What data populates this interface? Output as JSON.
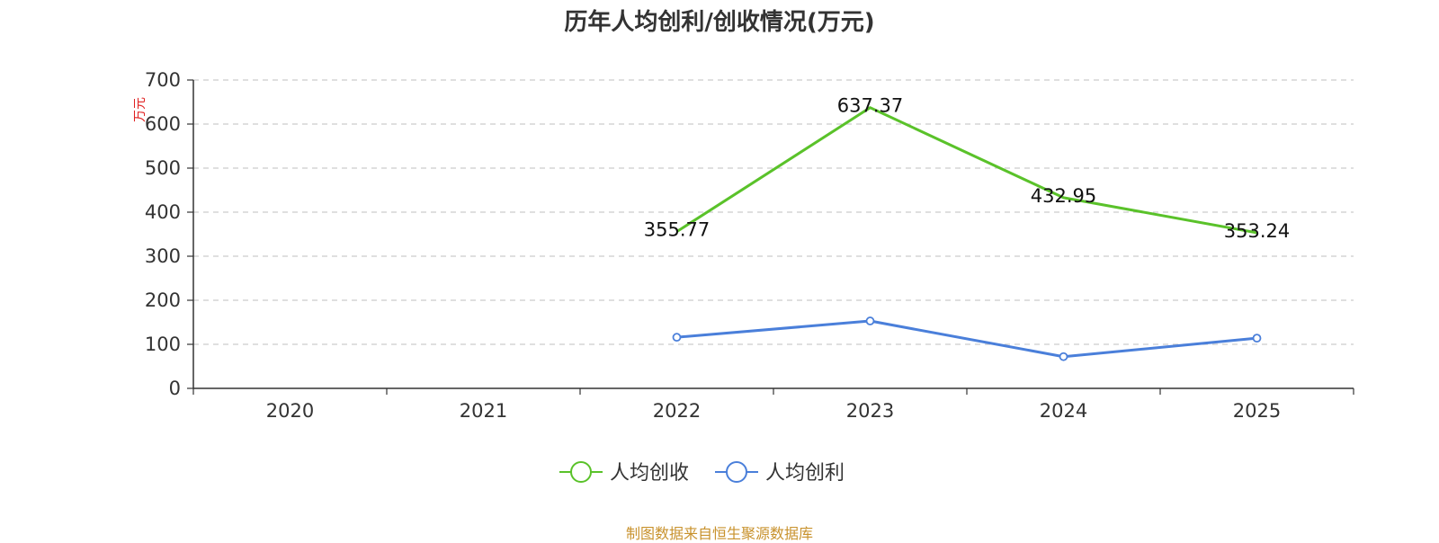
{
  "chart_data": {
    "type": "line",
    "title": "历年人均创利/创收情况(万元)",
    "ylabel": "万元",
    "categories": [
      "2020",
      "2021",
      "2022",
      "2023",
      "2024",
      "2025"
    ],
    "ylim": [
      0,
      700
    ],
    "yticks": [
      0,
      100,
      200,
      300,
      400,
      500,
      600,
      700
    ],
    "grid": true,
    "legend_position": "bottom",
    "series": [
      {
        "name": "人均创收",
        "color": "#5ac22a",
        "values": [
          null,
          null,
          355.77,
          637.37,
          432.95,
          353.24
        ],
        "show_labels": true,
        "show_markers": false
      },
      {
        "name": "人均创利",
        "color": "#4a7fda",
        "values": [
          null,
          null,
          116,
          153,
          72,
          114
        ],
        "show_labels": false,
        "show_markers": true
      }
    ]
  },
  "footer": "制图数据来自恒生聚源数据库"
}
